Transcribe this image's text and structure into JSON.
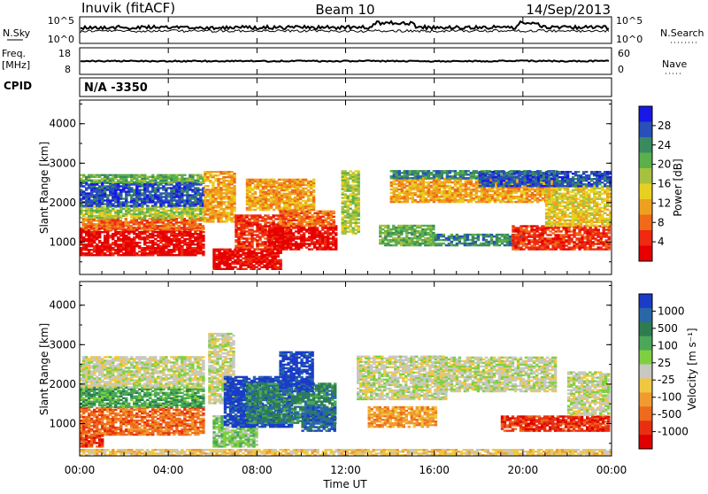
{
  "header": {
    "station": "Inuvik (fitACF)",
    "beam": "Beam 10",
    "date": "14/Sep/2013"
  },
  "sky_panel": {
    "left_label": "N.Sky",
    "right_label": "N.Search",
    "left_ticks": [
      "10^5",
      "10^0"
    ],
    "right_ticks": [
      "10^5",
      "10^0"
    ]
  },
  "freq_panel": {
    "label_line1": "Freq.",
    "label_line2": "[MHz]",
    "left_ticks": [
      "18",
      "8"
    ],
    "right_ticks": [
      "60",
      "0"
    ],
    "right_label": "Nave"
  },
  "cpid_panel": {
    "label": "CPID",
    "value": "N/A -3350"
  },
  "chart_data": [
    {
      "type": "heatmap",
      "name": "power",
      "ylabel": "Slant Range [km]",
      "ylim": [
        180,
        4600
      ],
      "yticks": [
        "4000",
        "3000",
        "2000",
        "1000"
      ],
      "colorbar_label": "Power [dB]",
      "colorbar_ticks": [
        "28",
        "24",
        "20",
        "16",
        "12",
        "8",
        "4"
      ],
      "colorscale": [
        "#1818e6",
        "#2850b8",
        "#3a8a60",
        "#5ab04a",
        "#a8c040",
        "#e8d020",
        "#f0a020",
        "#f06a18",
        "#ee2a10",
        "#e60000"
      ]
    },
    {
      "type": "heatmap",
      "name": "velocity",
      "ylabel": "Slant Range [km]",
      "ylim": [
        180,
        4600
      ],
      "yticks": [
        "4000",
        "3000",
        "2000",
        "1000"
      ],
      "colorbar_label": "Velocity [m s⁻¹]",
      "colorbar_ticks": [
        "1000",
        "500",
        "100",
        "25",
        "-25",
        "-100",
        "-500",
        "-1000"
      ],
      "colorscale": [
        "#1a3cc8",
        "#2868a8",
        "#2e7d50",
        "#4aa858",
        "#7ed040",
        "#c8c8c0",
        "#f0c840",
        "#f09a30",
        "#ee6a1c",
        "#e83010",
        "#e00000"
      ]
    }
  ],
  "x_axis": {
    "ticks": [
      "00:00",
      "04:00",
      "08:00",
      "12:00",
      "16:00",
      "20:00",
      "00:00"
    ],
    "label": "Time UT"
  }
}
